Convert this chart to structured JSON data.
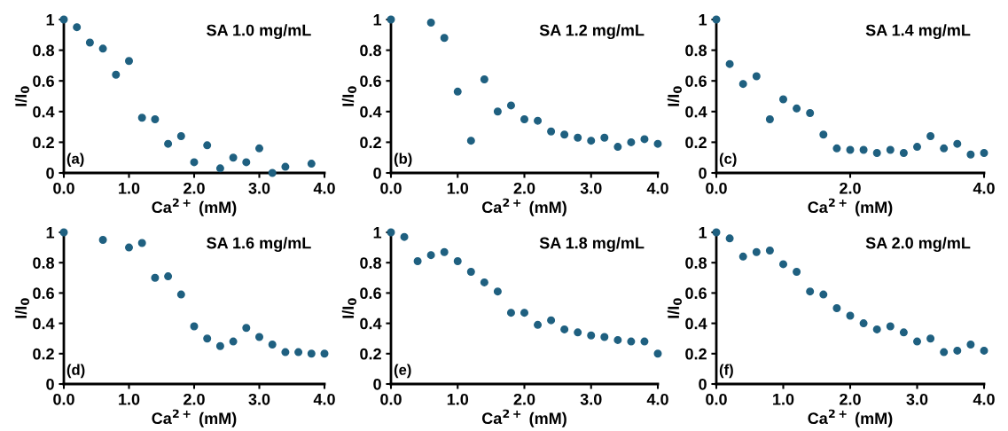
{
  "chart_data": [
    {
      "type": "scatter",
      "title": "SA 1.0 mg/mL",
      "xlabel": "Ca$^{2+}$ (mM)",
      "ylabel": "I/I$_{0}$",
      "annotations": [
        "(a)"
      ],
      "marker": "circle",
      "grid": false,
      "legend": false,
      "xlim": [
        0,
        4
      ],
      "ylim": [
        0,
        1
      ],
      "xticks": [
        {
          "value": 0,
          "label": "0.0"
        },
        {
          "value": 1,
          "label": "1.0"
        },
        {
          "value": 2,
          "label": "2.0"
        },
        {
          "value": 3,
          "label": "3.0"
        },
        {
          "value": 4,
          "label": "4.0"
        }
      ],
      "yticks": [
        0,
        0.2,
        0.4,
        0.6,
        0.8,
        1
      ],
      "series": [
        {
          "color": "#1f6080",
          "x": [
            0,
            0.2,
            0.4,
            0.6,
            0.8,
            1.0,
            1.2,
            1.4,
            1.6,
            1.8,
            2.0,
            2.2,
            2.4,
            2.6,
            2.8,
            3.0,
            3.2,
            3.4,
            3.8
          ],
          "values": [
            1.0,
            0.95,
            0.85,
            0.81,
            0.64,
            0.73,
            0.36,
            0.35,
            0.19,
            0.24,
            0.07,
            0.18,
            0.03,
            0.1,
            0.07,
            0.16,
            0.0,
            0.04,
            0.06
          ]
        }
      ]
    },
    {
      "type": "scatter",
      "title": "SA 1.2 mg/mL",
      "xlabel": "Ca$^{2+}$ (mM)",
      "ylabel": "I/I$_{0}$",
      "annotations": [
        "(b)"
      ],
      "marker": "circle",
      "grid": false,
      "legend": false,
      "xlim": [
        0,
        4
      ],
      "ylim": [
        0,
        1
      ],
      "xticks": [
        {
          "value": 0,
          "label": "0.0"
        },
        {
          "value": 1,
          "label": "1.0"
        },
        {
          "value": 2,
          "label": "2.0"
        },
        {
          "value": 3,
          "label": "3.0"
        },
        {
          "value": 4,
          "label": "4.0"
        }
      ],
      "yticks": [
        0,
        0.2,
        0.4,
        0.6,
        0.8,
        1
      ],
      "series": [
        {
          "color": "#1f6080",
          "x": [
            0,
            0.6,
            0.8,
            1.0,
            1.2,
            1.4,
            1.6,
            1.8,
            2.0,
            2.2,
            2.4,
            2.6,
            2.8,
            3.0,
            3.2,
            3.4,
            3.6,
            3.8,
            4.0
          ],
          "values": [
            1.0,
            0.98,
            0.88,
            0.53,
            0.21,
            0.61,
            0.4,
            0.44,
            0.35,
            0.34,
            0.27,
            0.25,
            0.23,
            0.21,
            0.23,
            0.17,
            0.2,
            0.22,
            0.19
          ]
        }
      ]
    },
    {
      "type": "scatter",
      "title": "SA 1.4 mg/mL",
      "xlabel": "Ca$^{2+}$ (mM)",
      "ylabel": "I/I$_{0}$",
      "annotations": [
        "(c)"
      ],
      "marker": "circle",
      "grid": false,
      "legend": false,
      "xlim": [
        0,
        4
      ],
      "ylim": [
        0,
        1
      ],
      "xticks": [
        {
          "value": 0,
          "label": "0.0"
        },
        {
          "value": 2,
          "label": "2.0"
        },
        {
          "value": 4,
          "label": "4.0"
        }
      ],
      "yticks": [
        0,
        0.2,
        0.4,
        0.6,
        0.8,
        1
      ],
      "series": [
        {
          "color": "#1f6080",
          "x": [
            0,
            0.2,
            0.4,
            0.6,
            0.8,
            1.0,
            1.2,
            1.4,
            1.6,
            1.8,
            2.0,
            2.2,
            2.4,
            2.6,
            2.8,
            3.0,
            3.2,
            3.4,
            3.6,
            3.8,
            4.0
          ],
          "values": [
            1.0,
            0.71,
            0.58,
            0.63,
            0.35,
            0.48,
            0.42,
            0.39,
            0.25,
            0.16,
            0.15,
            0.15,
            0.13,
            0.15,
            0.13,
            0.17,
            0.24,
            0.16,
            0.19,
            0.12,
            0.13
          ]
        }
      ]
    },
    {
      "type": "scatter",
      "title": "SA 1.6 mg/mL",
      "xlabel": "Ca$^{2+}$ (mM)",
      "ylabel": "I/I$_{0}$",
      "annotations": [
        "(d)"
      ],
      "marker": "circle",
      "grid": false,
      "legend": false,
      "xlim": [
        0,
        4
      ],
      "ylim": [
        0,
        1
      ],
      "xticks": [
        {
          "value": 0,
          "label": "0.0"
        },
        {
          "value": 1,
          "label": "1.0"
        },
        {
          "value": 2,
          "label": "2.0"
        },
        {
          "value": 3,
          "label": "3.0"
        },
        {
          "value": 4,
          "label": "4.0"
        }
      ],
      "yticks": [
        0,
        0.2,
        0.4,
        0.6,
        0.8,
        1
      ],
      "series": [
        {
          "color": "#1f6080",
          "x": [
            0,
            0.6,
            1.0,
            1.2,
            1.4,
            1.6,
            1.8,
            2.0,
            2.2,
            2.4,
            2.6,
            2.8,
            3.0,
            3.2,
            3.4,
            3.6,
            3.8,
            4.0
          ],
          "values": [
            1.0,
            0.95,
            0.9,
            0.93,
            0.7,
            0.71,
            0.59,
            0.38,
            0.3,
            0.25,
            0.28,
            0.37,
            0.31,
            0.26,
            0.21,
            0.21,
            0.2,
            0.2
          ]
        }
      ]
    },
    {
      "type": "scatter",
      "title": "SA 1.8 mg/mL",
      "xlabel": "Ca$^{2+}$ (mM)",
      "ylabel": "I/I$_{0}$",
      "annotations": [
        "(e)"
      ],
      "marker": "circle",
      "grid": false,
      "legend": false,
      "xlim": [
        0,
        4
      ],
      "ylim": [
        0,
        1
      ],
      "xticks": [
        {
          "value": 0,
          "label": "0.0"
        },
        {
          "value": 1,
          "label": "1.0"
        },
        {
          "value": 2,
          "label": "2.0"
        },
        {
          "value": 3,
          "label": "3.0"
        },
        {
          "value": 4,
          "label": "4.0"
        }
      ],
      "yticks": [
        0,
        0.2,
        0.4,
        0.6,
        0.8,
        1
      ],
      "series": [
        {
          "color": "#1f6080",
          "x": [
            0,
            0.2,
            0.4,
            0.6,
            0.8,
            1.0,
            1.2,
            1.4,
            1.6,
            1.8,
            2.0,
            2.2,
            2.4,
            2.6,
            2.8,
            3.0,
            3.2,
            3.4,
            3.6,
            3.8,
            4.0
          ],
          "values": [
            1.0,
            0.97,
            0.81,
            0.85,
            0.87,
            0.81,
            0.74,
            0.67,
            0.61,
            0.47,
            0.47,
            0.39,
            0.42,
            0.36,
            0.34,
            0.32,
            0.31,
            0.29,
            0.28,
            0.28,
            0.2
          ]
        }
      ]
    },
    {
      "type": "scatter",
      "title": "SA 2.0 mg/mL",
      "xlabel": "Ca$^{2+}$ (mM)",
      "ylabel": "I/I$_{0}$",
      "annotations": [
        "(f)"
      ],
      "marker": "circle",
      "grid": false,
      "legend": false,
      "xlim": [
        0,
        4
      ],
      "ylim": [
        0,
        1
      ],
      "xticks": [
        {
          "value": 0,
          "label": "0.0"
        },
        {
          "value": 1,
          "label": "1.0"
        },
        {
          "value": 2,
          "label": "2.0"
        },
        {
          "value": 3,
          "label": "3.0"
        },
        {
          "value": 4,
          "label": "4.0"
        }
      ],
      "yticks": [
        0,
        0.2,
        0.4,
        0.6,
        0.8,
        1
      ],
      "series": [
        {
          "color": "#1f6080",
          "x": [
            0,
            0.2,
            0.4,
            0.6,
            0.8,
            1.0,
            1.2,
            1.4,
            1.6,
            1.8,
            2.0,
            2.2,
            2.4,
            2.6,
            2.8,
            3.0,
            3.2,
            3.4,
            3.6,
            3.8,
            4.0
          ],
          "values": [
            1.0,
            0.96,
            0.84,
            0.87,
            0.88,
            0.79,
            0.74,
            0.61,
            0.59,
            0.5,
            0.45,
            0.4,
            0.36,
            0.38,
            0.34,
            0.28,
            0.3,
            0.21,
            0.22,
            0.26,
            0.22
          ]
        }
      ]
    }
  ]
}
